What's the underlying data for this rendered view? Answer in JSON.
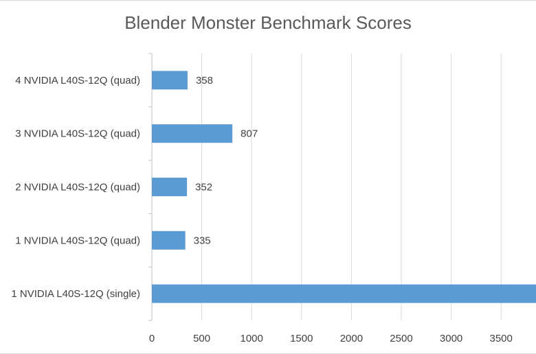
{
  "chart_data": {
    "type": "bar",
    "orientation": "horizontal",
    "title": "Blender Monster Benchmark Scores",
    "xlabel": "",
    "ylabel": "",
    "categories": [
      "1 NVIDIA L40S-12Q (single)",
      "1 NVIDIA L40S-12Q (quad)",
      "2 NVIDIA L40S-12Q (quad)",
      "3 NVIDIA L40S-12Q (quad)",
      "4 NVIDIA L40S-12Q (quad)"
    ],
    "values": [
      3900,
      335,
      352,
      807,
      358
    ],
    "data_labels": [
      "",
      "335",
      "352",
      "807",
      "358"
    ],
    "xlim": [
      0,
      3850
    ],
    "xticks": [
      0,
      500,
      1000,
      1500,
      2000,
      2500,
      3000,
      3500
    ],
    "grid": true,
    "legend": "none",
    "bar_color": "#5b9bd5",
    "grid_color": "#d9d9d9"
  }
}
